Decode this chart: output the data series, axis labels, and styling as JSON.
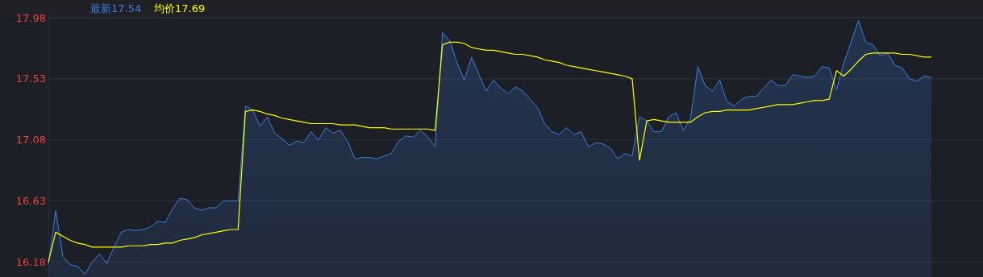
{
  "chart_data": {
    "type": "area",
    "grid": "y",
    "categories": [
      null,
      null,
      null,
      null,
      null,
      null,
      null,
      null,
      null,
      null,
      null,
      null,
      null,
      null,
      null,
      null,
      null,
      null,
      null,
      null,
      null,
      null,
      null,
      null,
      null,
      null,
      null,
      null,
      null,
      null,
      null,
      null,
      null,
      null,
      null,
      null,
      null,
      null,
      null,
      null,
      null,
      null,
      null,
      null,
      null,
      null,
      null,
      null,
      null,
      null,
      null,
      null,
      null,
      null,
      null,
      null,
      null,
      null,
      null,
      null,
      null,
      null,
      null,
      null,
      null,
      null,
      null,
      null,
      null,
      null,
      null,
      null,
      null,
      null,
      null,
      null,
      null,
      null,
      null,
      null,
      null,
      null,
      null,
      null,
      null,
      null,
      null,
      null,
      null,
      null,
      null,
      null,
      null,
      null,
      null,
      null,
      null,
      null,
      null,
      null,
      null,
      null,
      null,
      null,
      null,
      null,
      null,
      null,
      null,
      null,
      null,
      null,
      null,
      null,
      null,
      null,
      null,
      null,
      null,
      null,
      null,
      null
    ],
    "ylim": [
      16.07,
      17.98
    ],
    "yticks": [
      16.18,
      16.63,
      17.08,
      17.53,
      17.98
    ],
    "series": [
      {
        "name": "最新17.54",
        "color": "#3d7ee0",
        "values": [
          16.16,
          16.56,
          16.22,
          16.16,
          16.15,
          16.09,
          16.18,
          16.24,
          16.17,
          16.29,
          16.4,
          16.42,
          16.41,
          16.42,
          16.44,
          16.48,
          16.47,
          16.57,
          16.65,
          16.64,
          16.58,
          16.56,
          16.58,
          16.58,
          16.63,
          16.63,
          16.63,
          17.33,
          17.3,
          17.18,
          17.25,
          17.13,
          17.09,
          17.04,
          17.07,
          17.06,
          17.14,
          17.08,
          17.17,
          17.13,
          17.15,
          17.07,
          16.94,
          16.95,
          16.95,
          16.94,
          16.96,
          16.98,
          17.07,
          17.11,
          17.1,
          17.15,
          17.1,
          17.03,
          17.87,
          17.81,
          17.65,
          17.52,
          17.69,
          17.56,
          17.44,
          17.52,
          17.46,
          17.42,
          17.47,
          17.44,
          17.38,
          17.32,
          17.2,
          17.14,
          17.12,
          17.17,
          17.12,
          17.14,
          17.03,
          17.06,
          17.05,
          17.02,
          16.94,
          16.98,
          16.96,
          17.25,
          17.22,
          17.14,
          17.14,
          17.25,
          17.28,
          17.15,
          17.24,
          17.62,
          17.48,
          17.44,
          17.52,
          17.36,
          17.33,
          17.38,
          17.4,
          17.4,
          17.46,
          17.52,
          17.48,
          17.48,
          17.56,
          17.55,
          17.54,
          17.55,
          17.62,
          17.61,
          17.45,
          17.65,
          17.8,
          17.96,
          17.8,
          17.78,
          17.7,
          17.72,
          17.63,
          17.61,
          17.53,
          17.51,
          17.55,
          17.54
        ]
      },
      {
        "name": "均价17.69",
        "color": "#ffff00",
        "type": "line",
        "values": [
          16.18,
          16.4,
          16.37,
          16.34,
          16.32,
          16.31,
          16.29,
          16.29,
          16.29,
          16.29,
          16.29,
          16.3,
          16.3,
          16.3,
          16.31,
          16.31,
          16.32,
          16.32,
          16.34,
          16.35,
          16.36,
          16.38,
          16.39,
          16.4,
          16.41,
          16.42,
          16.42,
          17.29,
          17.3,
          17.29,
          17.27,
          17.26,
          17.24,
          17.23,
          17.22,
          17.21,
          17.2,
          17.2,
          17.2,
          17.2,
          17.19,
          17.19,
          17.19,
          17.18,
          17.17,
          17.17,
          17.17,
          17.16,
          17.16,
          17.16,
          17.16,
          17.16,
          17.16,
          17.15,
          17.78,
          17.8,
          17.8,
          17.79,
          17.76,
          17.75,
          17.74,
          17.74,
          17.73,
          17.72,
          17.71,
          17.71,
          17.7,
          17.69,
          17.67,
          17.66,
          17.65,
          17.63,
          17.62,
          17.61,
          17.6,
          17.59,
          17.58,
          17.57,
          17.56,
          17.55,
          17.53,
          16.93,
          17.22,
          17.23,
          17.22,
          17.21,
          17.21,
          17.21,
          17.21,
          17.25,
          17.28,
          17.29,
          17.29,
          17.3,
          17.3,
          17.3,
          17.3,
          17.31,
          17.32,
          17.33,
          17.34,
          17.34,
          17.34,
          17.35,
          17.36,
          17.37,
          17.37,
          17.38,
          17.59,
          17.55,
          17.6,
          17.66,
          17.71,
          17.72,
          17.72,
          17.72,
          17.72,
          17.71,
          17.71,
          17.7,
          17.69,
          17.69
        ]
      }
    ]
  }
}
